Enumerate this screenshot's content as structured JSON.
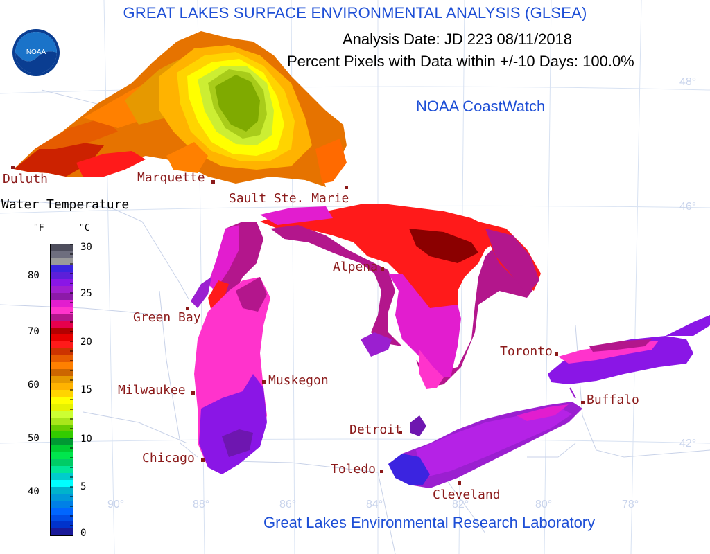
{
  "header": {
    "title": "GREAT LAKES SURFACE ENVIRONMENTAL ANALYSIS (GLSEA)",
    "analysis_date": "Analysis Date:  JD 223 08/11/2018",
    "percent_pixels": "Percent Pixels with Data within +/-10 Days: 100.0%",
    "coastwatch": "NOAA CoastWatch",
    "footer": "Great Lakes Environmental Research Laboratory",
    "logo_text": "NOAA"
  },
  "legend": {
    "title": "Water Temperature",
    "unit_f": "°F",
    "unit_c": "°C",
    "f_ticks": [
      "80",
      "70",
      "60",
      "50",
      "40"
    ],
    "c_ticks": [
      "30",
      "25",
      "20",
      "15",
      "10",
      "5",
      "0"
    ],
    "colors_top_to_bottom": [
      "#4d4d5c",
      "#6e6e7e",
      "#9a9a9a",
      "#3b24e0",
      "#5c1fd9",
      "#8a16e6",
      "#a11fcf",
      "#8c1aa8",
      "#e21dcf",
      "#ff33cc",
      "#b3168c",
      "#e6004d",
      "#b30000",
      "#e60000",
      "#ff1a1a",
      "#cc3300",
      "#e65c00",
      "#ff8000",
      "#cc6600",
      "#e69900",
      "#ffb300",
      "#ffd400",
      "#ffff00",
      "#e6f200",
      "#ccff33",
      "#a8e61a",
      "#66cc00",
      "#33cc00",
      "#009933",
      "#00cc33",
      "#00e64d",
      "#00cc66",
      "#00e699",
      "#00cccc",
      "#00ffff",
      "#00b3cc",
      "#0099d9",
      "#0080e6",
      "#0066ff",
      "#004de6",
      "#0033cc",
      "#1a1a99"
    ]
  },
  "cities": [
    {
      "label": "Duluth"
    },
    {
      "label": "Marquette"
    },
    {
      "label": "Sault Ste. Marie"
    },
    {
      "label": "Green Bay"
    },
    {
      "label": "Alpena"
    },
    {
      "label": "Milwaukee"
    },
    {
      "label": "Muskegon"
    },
    {
      "label": "Chicago"
    },
    {
      "label": "Detroit"
    },
    {
      "label": "Toledo"
    },
    {
      "label": "Cleveland"
    },
    {
      "label": "Toronto"
    },
    {
      "label": "Buffalo"
    }
  ],
  "graticule": {
    "latitudes": [
      "48°",
      "46°",
      "42°"
    ],
    "longitudes": [
      "90°",
      "88°",
      "86°",
      "84°",
      "82°",
      "80°",
      "78°"
    ]
  }
}
